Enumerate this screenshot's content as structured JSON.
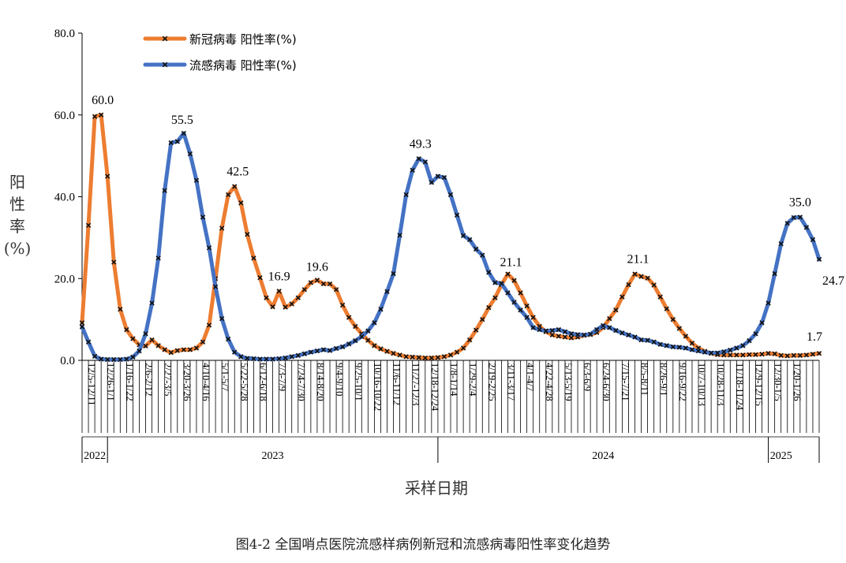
{
  "caption": "图4-2   全国哨点医院流感样病例新冠和流感病毒阳性率变化趋势",
  "chart_data": {
    "type": "line",
    "title": "",
    "xlabel": "采样日期",
    "ylabel": "阳性率(%)",
    "ylabel_chars": [
      "阳",
      "性",
      "率",
      "(%)"
    ],
    "ylim": [
      0,
      80
    ],
    "yticks": [
      "0.0",
      "20.0",
      "40.0",
      "60.0",
      "80.0"
    ],
    "grid": false,
    "legend_position": "top-left",
    "x_tick_labels": [
      "12/5-12/11",
      "12/26-1/1",
      "1/16-1/22",
      "2/6-2/12",
      "2/27-3/5",
      "3/20-3/26",
      "4/10-4/16",
      "5/1-5/7",
      "5/22-5/28",
      "6/12-6/18",
      "7/3-7/9",
      "7/24-7/30",
      "8/14-8/20",
      "9/4-9/10",
      "9/25-10/1",
      "10/16-10/22",
      "11/6-11/12",
      "11/27-12/3",
      "12/18-12/24",
      "1/8-1/14",
      "1/29-2/4",
      "2/19-2/25",
      "3/11-3/17",
      "4/1-4/7",
      "4/22-4/28",
      "5/13-5/19",
      "6/3-6/9",
      "6/24-6/30",
      "7/15-7/21",
      "8/5-8/11",
      "8/26-9/1",
      "9/16-9/22",
      "10/7-10/13",
      "10/28-11/3",
      "11/18-11/24",
      "12/9-12/15",
      "12/30-1/5",
      "1/20-1/26"
    ],
    "years": [
      {
        "label": "2022",
        "start": 0,
        "end": 4
      },
      {
        "label": "2023",
        "start": 4,
        "end": 56
      },
      {
        "label": "2024",
        "start": 56,
        "end": 108
      },
      {
        "label": "2025",
        "start": 108,
        "end": 112
      }
    ],
    "series": [
      {
        "name": "新冠病毒 阳性率(%)",
        "color": "#ED7D31",
        "values": [
          9.2,
          33.0,
          59.6,
          60.0,
          45.0,
          24.0,
          12.5,
          7.5,
          5.3,
          3.8,
          3.5,
          5.0,
          3.6,
          2.6,
          1.9,
          2.4,
          2.6,
          2.6,
          3.0,
          4.5,
          8.6,
          20.0,
          32.3,
          40.5,
          42.5,
          38.5,
          30.8,
          25.0,
          20.2,
          15.3,
          13.1,
          16.9,
          13.0,
          13.8,
          15.3,
          17.3,
          19.0,
          19.6,
          18.7,
          18.7,
          17.3,
          13.5,
          10.5,
          8.3,
          6.5,
          4.9,
          3.6,
          2.8,
          2.2,
          1.7,
          1.3,
          0.9,
          0.8,
          0.7,
          0.6,
          0.6,
          0.7,
          0.9,
          1.3,
          2.0,
          3.0,
          5.0,
          7.4,
          10.0,
          12.9,
          15.3,
          18.5,
          21.1,
          19.5,
          16.5,
          13.3,
          10.5,
          8.3,
          7.0,
          6.2,
          5.9,
          5.7,
          5.5,
          5.7,
          6.1,
          6.3,
          6.8,
          8.0,
          10.2,
          12.3,
          15.5,
          18.5,
          21.1,
          20.5,
          20.1,
          18.4,
          15.5,
          12.6,
          10.0,
          7.8,
          5.9,
          4.2,
          3.0,
          2.2,
          1.7,
          1.4,
          1.3,
          1.3,
          1.3,
          1.3,
          1.4,
          1.4,
          1.5,
          1.7,
          1.6,
          1.2,
          1.1,
          1.2,
          1.2,
          1.3,
          1.5,
          1.7
        ]
      },
      {
        "name": "流感病毒 阳性率(%)",
        "color": "#4472C4",
        "values": [
          8.2,
          4.5,
          1.0,
          0.3,
          0.2,
          0.2,
          0.2,
          0.3,
          0.8,
          2.3,
          6.5,
          14.0,
          25.0,
          41.5,
          53.2,
          53.5,
          55.5,
          50.5,
          44.0,
          35.0,
          27.5,
          18.0,
          10.2,
          5.2,
          2.0,
          0.9,
          0.5,
          0.4,
          0.3,
          0.3,
          0.3,
          0.4,
          0.6,
          0.9,
          1.2,
          1.6,
          2.0,
          2.3,
          2.6,
          2.4,
          2.9,
          3.3,
          4.0,
          4.8,
          5.8,
          7.2,
          9.2,
          12.5,
          16.8,
          21.2,
          30.6,
          40.5,
          46.5,
          49.3,
          48.5,
          43.5,
          45.0,
          44.7,
          40.5,
          35.5,
          30.5,
          29.5,
          27.2,
          25.7,
          21.5,
          19.0,
          18.8,
          16.5,
          14.2,
          12.3,
          10.5,
          8.0,
          7.5,
          7.2,
          7.3,
          7.5,
          7.0,
          6.5,
          6.3,
          6.2,
          6.4,
          7.5,
          8.5,
          8.0,
          7.3,
          6.7,
          6.2,
          5.7,
          5.0,
          4.9,
          4.5,
          3.9,
          3.6,
          3.3,
          3.2,
          3.0,
          2.6,
          2.3,
          2.0,
          1.8,
          1.8,
          2.1,
          2.5,
          3.0,
          3.6,
          4.8,
          6.5,
          9.2,
          14.0,
          21.2,
          28.5,
          33.5,
          34.9,
          35.0,
          32.5,
          29.5,
          24.7
        ]
      }
    ],
    "annotations": [
      {
        "series": 0,
        "index": 3,
        "text": "60.0"
      },
      {
        "series": 1,
        "index": 16,
        "text": "55.5"
      },
      {
        "series": 0,
        "index": 24,
        "text": "42.5"
      },
      {
        "series": 0,
        "index": 31,
        "text": "16.9"
      },
      {
        "series": 0,
        "index": 37,
        "text": "19.6"
      },
      {
        "series": 1,
        "index": 53,
        "text": "49.3"
      },
      {
        "series": 0,
        "index": 67,
        "text": "21.1"
      },
      {
        "series": 0,
        "index": 87,
        "text": "21.1"
      },
      {
        "series": 1,
        "index": 113,
        "text": "35.0"
      },
      {
        "series": 1,
        "index": 116,
        "text": "24.7"
      },
      {
        "series": 0,
        "index": 116,
        "text": "1.7"
      }
    ]
  }
}
